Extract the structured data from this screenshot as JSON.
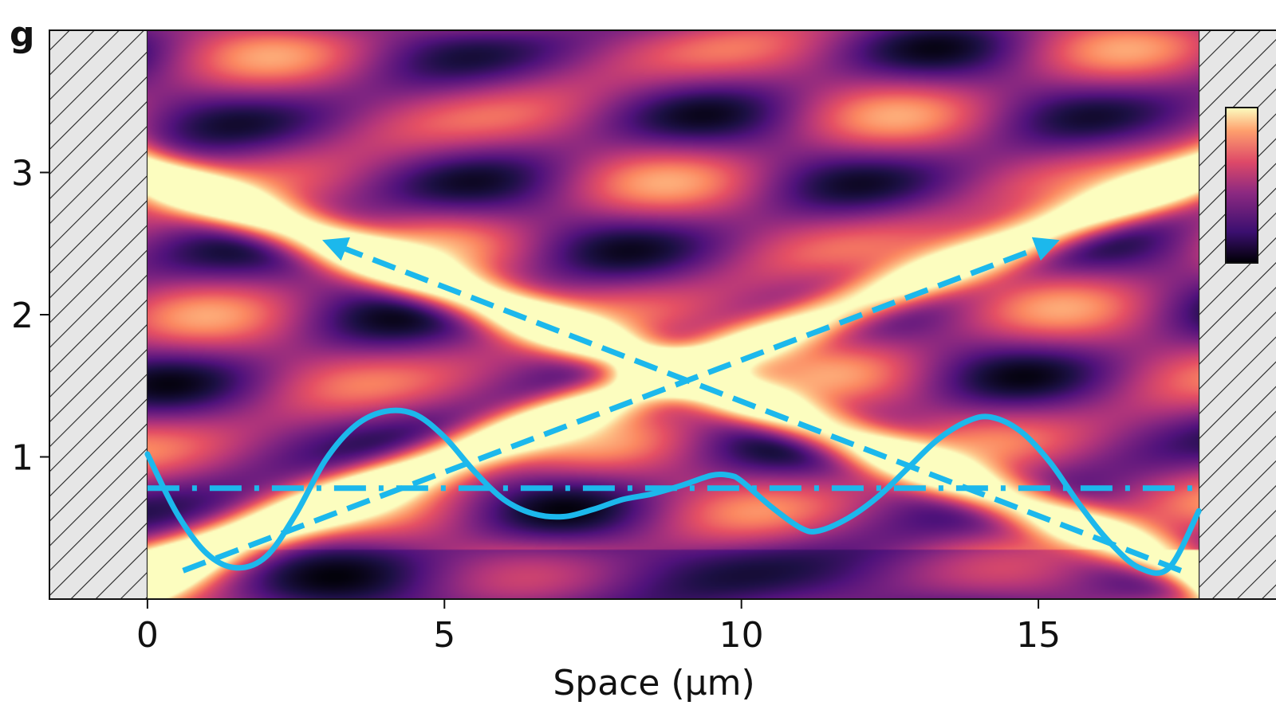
{
  "panel_label": "g",
  "chart_data": {
    "type": "heatmap",
    "title": "",
    "xlabel": "Space (µm)",
    "ylabel": "",
    "xlim": [
      -1.65,
      19.0
    ],
    "ylim": [
      0.0,
      4.0
    ],
    "xticks": [
      0,
      5,
      10,
      15
    ],
    "yticks": [
      1,
      2,
      3
    ],
    "colormap": "magma",
    "colorbar_visible": true,
    "grid": false,
    "hatched_regions_x": [
      [
        -1.65,
        0.0
      ],
      [
        17.7,
        19.0
      ]
    ],
    "heatmap_x_range": [
      0.0,
      17.7
    ],
    "series": [
      {
        "style": "solid",
        "x": [
          0.0,
          0.5,
          1.0,
          1.5,
          2.0,
          2.5,
          3.0,
          3.5,
          4.0,
          4.5,
          5.0,
          5.5,
          6.0,
          6.5,
          7.0,
          7.5,
          8.0,
          8.5,
          9.0,
          9.5,
          9.8,
          10.0,
          10.5,
          11.0,
          11.3,
          11.8,
          12.3,
          12.8,
          13.3,
          13.8,
          14.2,
          14.7,
          15.2,
          15.7,
          16.2,
          16.7,
          17.2,
          17.7
        ],
        "y": [
          1.02,
          0.6,
          0.32,
          0.22,
          0.3,
          0.6,
          0.98,
          1.22,
          1.32,
          1.3,
          1.14,
          0.9,
          0.7,
          0.6,
          0.58,
          0.63,
          0.7,
          0.74,
          0.8,
          0.87,
          0.87,
          0.83,
          0.65,
          0.5,
          0.48,
          0.57,
          0.72,
          0.92,
          1.12,
          1.25,
          1.28,
          1.18,
          0.96,
          0.66,
          0.4,
          0.22,
          0.22,
          0.62
        ],
        "color": "#1cb8ec"
      },
      {
        "style": "dash-dot",
        "x": [
          0.0,
          17.7
        ],
        "y": [
          0.78,
          0.78
        ],
        "color": "#1cb8ec"
      },
      {
        "style": "dashed-arrow",
        "x": [
          0.6,
          15.2
        ],
        "y": [
          0.2,
          2.5
        ],
        "color": "#1cb8ec"
      },
      {
        "style": "dashed-arrow",
        "x": [
          17.4,
          3.1
        ],
        "y": [
          0.2,
          2.5
        ],
        "color": "#1cb8ec"
      }
    ]
  }
}
